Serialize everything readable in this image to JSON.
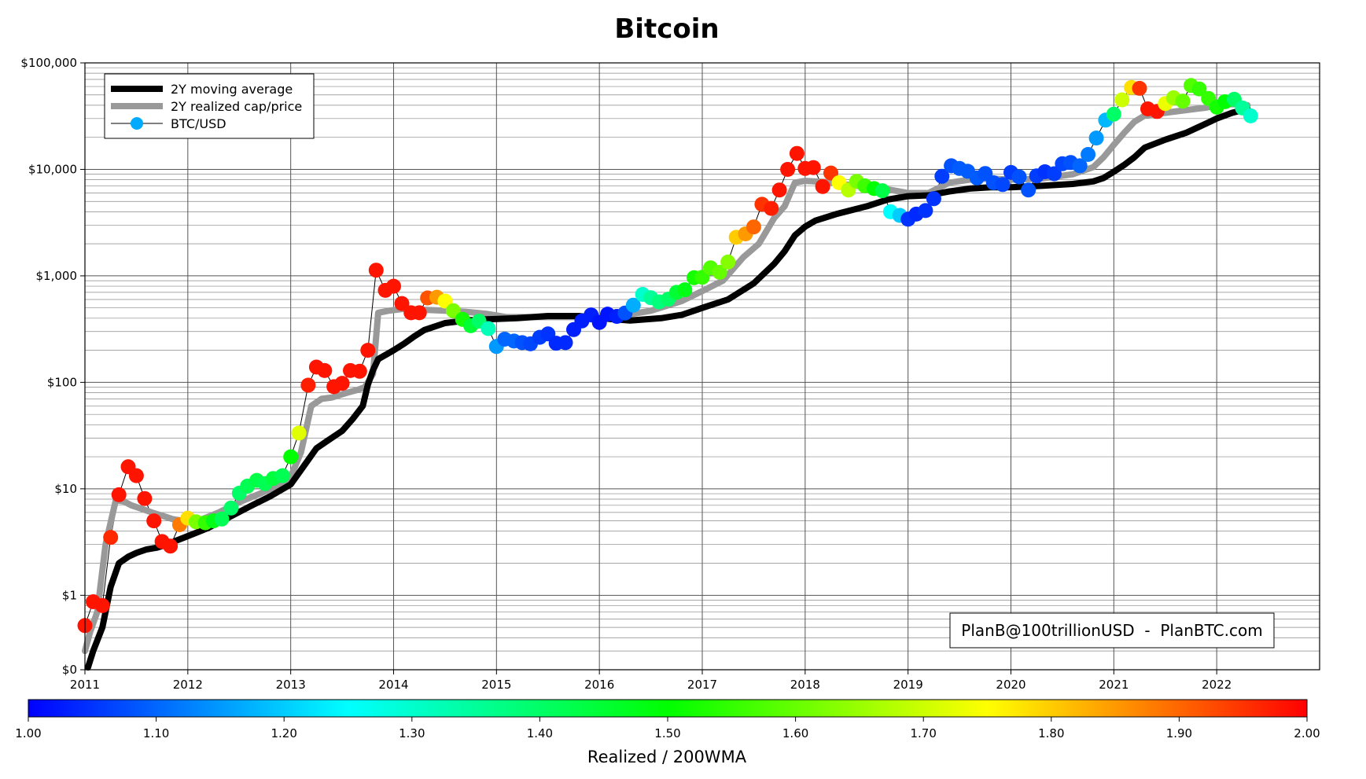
{
  "chart_data": {
    "type": "scatter",
    "title": "Bitcoin",
    "xlabel": "",
    "ylabel": "",
    "y_scale": "log",
    "ylim": [
      0.2,
      100000
    ],
    "xlim": [
      2011.0,
      2023.0
    ],
    "x_ticks": [
      "2011",
      "2012",
      "2013",
      "2014",
      "2015",
      "2016",
      "2017",
      "2018",
      "2019",
      "2020",
      "2021",
      "2022"
    ],
    "y_ticks": [
      {
        "value": 0.2,
        "label": "$0"
      },
      {
        "value": 1,
        "label": "$1"
      },
      {
        "value": 10,
        "label": "$10"
      },
      {
        "value": 100,
        "label": "$100"
      },
      {
        "value": 1000,
        "label": "$1,000"
      },
      {
        "value": 10000,
        "label": "$10,000"
      },
      {
        "value": 100000,
        "label": "$100,000"
      }
    ],
    "grid": true,
    "legend": {
      "placement": "top-left",
      "entries": [
        "2Y moving average",
        "2Y realized cap/price",
        "BTC/USD"
      ]
    },
    "colorbar": {
      "label": "Realized / 200WMA",
      "min": 1.0,
      "max": 2.0,
      "ticks": [
        "1.00",
        "1.10",
        "1.20",
        "1.30",
        "1.40",
        "1.50",
        "1.60",
        "1.70",
        "1.80",
        "1.90",
        "2.00"
      ],
      "colors": [
        "#0000ff",
        "#00ffff",
        "#00ff00",
        "#ffff00",
        "#ff0000"
      ]
    },
    "annotation": "PlanB@100trillionUSD  -  PlanBTC.com",
    "series": [
      {
        "name": "2Y moving average",
        "type": "line",
        "color": "#000000",
        "x": [
          2011.03,
          2011.08,
          2011.17,
          2011.25,
          2011.33,
          2011.42,
          2011.5,
          2011.6,
          2011.7,
          2011.8,
          2011.9,
          2012.0,
          2012.2,
          2012.4,
          2012.6,
          2012.8,
          2013.0,
          2013.1,
          2013.25,
          2013.35,
          2013.5,
          2013.6,
          2013.7,
          2013.75,
          2013.8,
          2013.85,
          2014.0,
          2014.1,
          2014.2,
          2014.3,
          2014.5,
          2014.7,
          2014.9,
          2015.2,
          2015.5,
          2015.8,
          2016.0,
          2016.3,
          2016.6,
          2016.8,
          2017.0,
          2017.25,
          2017.5,
          2017.7,
          2017.8,
          2017.9,
          2018.0,
          2018.1,
          2018.3,
          2018.6,
          2018.8,
          2019.0,
          2019.2,
          2019.4,
          2019.6,
          2019.8,
          2020.0,
          2020.3,
          2020.6,
          2020.8,
          2020.9,
          2021.0,
          2021.1,
          2021.2,
          2021.3,
          2021.5,
          2021.7,
          2021.9,
          2022.0,
          2022.15,
          2022.3
        ],
        "y": [
          0.21,
          0.3,
          0.5,
          1.2,
          2.0,
          2.3,
          2.5,
          2.7,
          2.8,
          3.0,
          3.3,
          3.6,
          4.3,
          5.4,
          6.8,
          8.5,
          11,
          15,
          24,
          28,
          35,
          45,
          60,
          95,
          130,
          165,
          200,
          230,
          270,
          310,
          360,
          380,
          390,
          400,
          420,
          420,
          400,
          380,
          400,
          430,
          500,
          600,
          850,
          1300,
          1700,
          2400,
          2900,
          3300,
          3800,
          4500,
          5200,
          5600,
          5700,
          6200,
          6600,
          6800,
          6800,
          7000,
          7300,
          7700,
          8300,
          9500,
          11000,
          13000,
          16000,
          19000,
          22000,
          27000,
          30000,
          34000,
          37000
        ]
      },
      {
        "name": "2Y realized cap/price",
        "type": "line",
        "color": "#999999",
        "x": [
          2011.0,
          2011.05,
          2011.12,
          2011.2,
          2011.3,
          2011.38,
          2011.45,
          2011.55,
          2011.65,
          2011.75,
          2011.85,
          2011.95,
          2012.1,
          2012.3,
          2012.5,
          2012.7,
          2012.9,
          2013.0,
          2013.1,
          2013.2,
          2013.3,
          2013.4,
          2013.55,
          2013.65,
          2013.72,
          2013.8,
          2013.85,
          2013.95,
          2014.1,
          2014.3,
          2014.5,
          2014.7,
          2014.9,
          2015.1,
          2015.5,
          2015.9,
          2016.2,
          2016.5,
          2016.8,
          2017.0,
          2017.2,
          2017.4,
          2017.55,
          2017.7,
          2017.8,
          2017.9,
          2018.0,
          2018.2,
          2018.5,
          2018.8,
          2019.0,
          2019.2,
          2019.4,
          2019.6,
          2019.8,
          2020.0,
          2020.3,
          2020.6,
          2020.8,
          2020.9,
          2021.0,
          2021.1,
          2021.2,
          2021.3,
          2021.5,
          2021.7,
          2021.9,
          2022.0,
          2022.15,
          2022.3
        ],
        "y": [
          0.3,
          0.45,
          0.7,
          3.0,
          7.8,
          7.6,
          7.0,
          6.5,
          6.0,
          5.6,
          5.2,
          5.0,
          5.0,
          6.0,
          7.5,
          9.0,
          11,
          13,
          22,
          60,
          70,
          72,
          80,
          85,
          90,
          120,
          450,
          470,
          490,
          480,
          470,
          460,
          440,
          410,
          410,
          410,
          420,
          470,
          580,
          720,
          900,
          1500,
          2000,
          3500,
          4500,
          7500,
          7800,
          7600,
          7000,
          6500,
          6000,
          6000,
          7500,
          8000,
          8200,
          8000,
          8200,
          9000,
          10500,
          13000,
          17000,
          22000,
          28000,
          32000,
          34000,
          36000,
          38000,
          40000,
          41000,
          40000
        ]
      },
      {
        "name": "BTC/USD",
        "type": "scatter",
        "color": "#00aaff",
        "x": [
          2011.0,
          2011.08,
          2011.17,
          2011.25,
          2011.33,
          2011.42,
          2011.5,
          2011.58,
          2011.67,
          2011.75,
          2011.83,
          2011.92,
          2012.0,
          2012.08,
          2012.17,
          2012.25,
          2012.33,
          2012.42,
          2012.5,
          2012.58,
          2012.67,
          2012.75,
          2012.83,
          2012.92,
          2013.0,
          2013.08,
          2013.17,
          2013.25,
          2013.33,
          2013.42,
          2013.5,
          2013.58,
          2013.67,
          2013.75,
          2013.83,
          2013.92,
          2014.0,
          2014.08,
          2014.17,
          2014.25,
          2014.33,
          2014.42,
          2014.5,
          2014.58,
          2014.67,
          2014.75,
          2014.83,
          2014.92,
          2015.0,
          2015.08,
          2015.17,
          2015.25,
          2015.33,
          2015.42,
          2015.5,
          2015.58,
          2015.67,
          2015.75,
          2015.83,
          2015.92,
          2016.0,
          2016.08,
          2016.17,
          2016.25,
          2016.33,
          2016.42,
          2016.5,
          2016.58,
          2016.67,
          2016.75,
          2016.83,
          2016.92,
          2017.0,
          2017.08,
          2017.17,
          2017.25,
          2017.33,
          2017.42,
          2017.5,
          2017.58,
          2017.67,
          2017.75,
          2017.83,
          2017.92,
          2018.0,
          2018.08,
          2018.17,
          2018.25,
          2018.33,
          2018.42,
          2018.5,
          2018.58,
          2018.67,
          2018.75,
          2018.83,
          2018.92,
          2019.0,
          2019.08,
          2019.17,
          2019.25,
          2019.33,
          2019.42,
          2019.5,
          2019.58,
          2019.67,
          2019.75,
          2019.83,
          2019.92,
          2020.0,
          2020.08,
          2020.17,
          2020.25,
          2020.33,
          2020.42,
          2020.5,
          2020.58,
          2020.67,
          2020.75,
          2020.83,
          2020.92,
          2021.0,
          2021.08,
          2021.17,
          2021.25,
          2021.33,
          2021.42,
          2021.5,
          2021.58,
          2021.67,
          2021.75,
          2021.83,
          2021.92,
          2022.0,
          2022.08,
          2022.17,
          2022.25,
          2022.33
        ],
        "y": [
          0.52,
          0.87,
          0.8,
          3.5,
          8.8,
          16.1,
          13.3,
          8.1,
          5.0,
          3.2,
          2.9,
          4.6,
          5.3,
          4.9,
          4.8,
          5.0,
          5.2,
          6.6,
          9.1,
          10.6,
          12.0,
          11.2,
          12.5,
          13.3,
          20.0,
          33.4,
          94,
          139,
          129,
          91,
          98,
          129,
          127,
          200,
          1130,
          730,
          800,
          550,
          450,
          450,
          620,
          630,
          580,
          470,
          390,
          340,
          375,
          320,
          217,
          254,
          244,
          236,
          230,
          265,
          285,
          233,
          236,
          313,
          377,
          430,
          365,
          437,
          416,
          448,
          531,
          670,
          624,
          570,
          605,
          700,
          740,
          960,
          970,
          1190,
          1080,
          1350,
          2300,
          2480,
          2880,
          4700,
          4300,
          6400,
          10000,
          14100,
          10200,
          10400,
          6900,
          9240,
          7500,
          6400,
          7730,
          7000,
          6600,
          6300,
          4000,
          3700,
          3400,
          3800,
          4100,
          5300,
          8600,
          10800,
          10200,
          9600,
          8300,
          9150,
          7500,
          7200,
          9350,
          8500,
          6400,
          8700,
          9500,
          9100,
          11300,
          11600,
          10800,
          13800,
          19700,
          29000,
          33000,
          45000,
          58700,
          57700,
          37000,
          35000,
          41500,
          47000,
          43800,
          61300,
          57000,
          46300,
          38400,
          43200,
          45500,
          37700,
          31800
        ],
        "ratio": [
          1.98,
          1.98,
          1.98,
          1.96,
          1.98,
          1.98,
          1.98,
          1.98,
          1.98,
          1.98,
          1.98,
          1.88,
          1.78,
          1.62,
          1.55,
          1.48,
          1.42,
          1.4,
          1.4,
          1.42,
          1.43,
          1.42,
          1.44,
          1.42,
          1.5,
          1.72,
          1.97,
          1.98,
          1.98,
          1.98,
          1.98,
          1.98,
          1.98,
          1.98,
          1.98,
          1.98,
          1.98,
          1.98,
          1.98,
          1.98,
          1.92,
          1.85,
          1.75,
          1.62,
          1.52,
          1.45,
          1.4,
          1.32,
          1.15,
          1.1,
          1.1,
          1.08,
          1.07,
          1.06,
          1.05,
          1.04,
          1.04,
          1.03,
          1.03,
          1.03,
          1.02,
          1.02,
          1.03,
          1.08,
          1.17,
          1.3,
          1.35,
          1.38,
          1.4,
          1.45,
          1.48,
          1.52,
          1.55,
          1.58,
          1.6,
          1.63,
          1.8,
          1.85,
          1.9,
          1.95,
          1.97,
          1.98,
          1.98,
          1.98,
          1.98,
          1.98,
          1.98,
          1.95,
          1.75,
          1.68,
          1.62,
          1.56,
          1.5,
          1.43,
          1.25,
          1.2,
          1.05,
          1.04,
          1.05,
          1.05,
          1.06,
          1.08,
          1.09,
          1.09,
          1.09,
          1.08,
          1.08,
          1.07,
          1.06,
          1.08,
          1.08,
          1.06,
          1.05,
          1.06,
          1.07,
          1.08,
          1.1,
          1.12,
          1.15,
          1.18,
          1.4,
          1.7,
          1.78,
          1.95,
          1.98,
          1.98,
          1.73,
          1.65,
          1.6,
          1.58,
          1.55,
          1.55,
          1.52,
          1.5,
          1.4,
          1.35,
          1.3,
          1.25,
          1.2,
          1.18,
          1.14
        ]
      }
    ]
  }
}
